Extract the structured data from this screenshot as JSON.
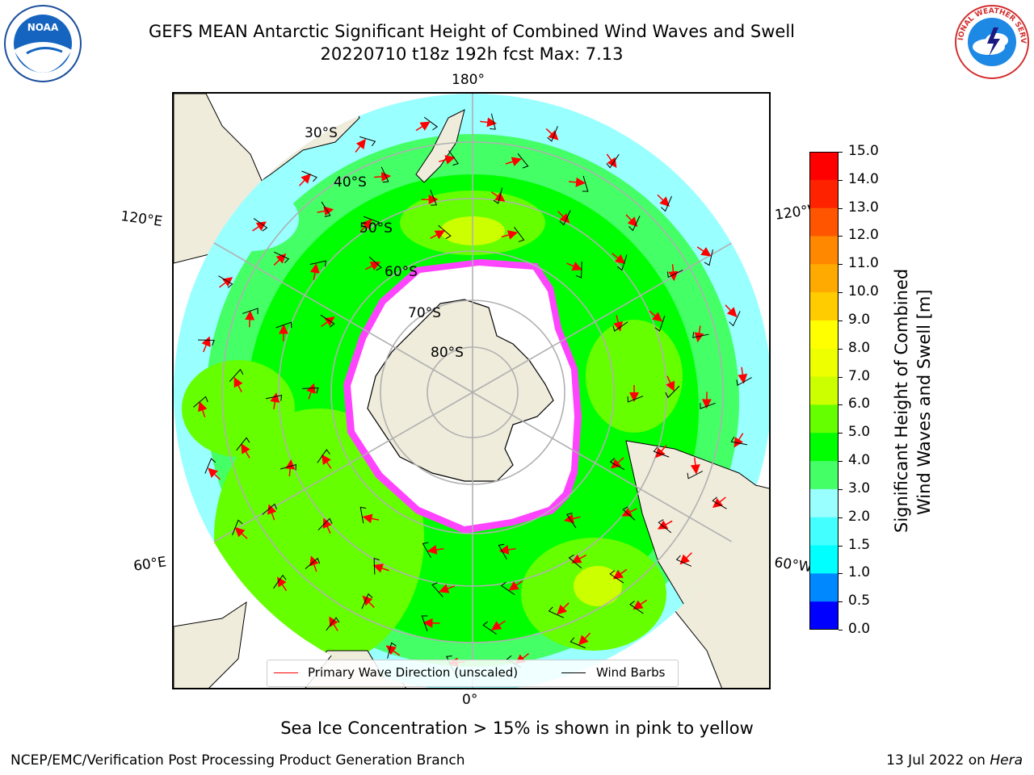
{
  "title": {
    "line1": "GEFS MEAN Antarctic Significant Height of Combined Wind Waves and Swell",
    "line2": "20220710 t18z 192h fcst   Max: 7.13"
  },
  "map": {
    "projection": "south-polar-stereographic",
    "longitude_labels": {
      "top": "180°",
      "bottom": "0°",
      "upper_left": "120°E",
      "upper_right": "120°W",
      "lower_left": "60°E",
      "lower_right": "60°W"
    },
    "latitude_labels": [
      "30°S",
      "40°S",
      "50°S",
      "60°S",
      "70°S",
      "80°S"
    ],
    "colors": {
      "land": "#efecdb",
      "ice_edge": "#ff44ff",
      "ice_interior": "#ffffff",
      "arrow": "#ff0000",
      "barb": "#000000"
    }
  },
  "legend": {
    "items": [
      {
        "label": "Primary Wave Direction (unscaled)",
        "color": "#ff0000"
      },
      {
        "label": "Wind Barbs",
        "color": "#000000"
      }
    ]
  },
  "colorbar": {
    "label_line1": "Significant Height of Combined",
    "label_line2": "Wind Waves and Swell [m]",
    "ticks": [
      "15.0",
      "14.0",
      "13.0",
      "12.0",
      "11.0",
      "10.0",
      "9.0",
      "8.0",
      "7.0",
      "6.0",
      "5.0",
      "4.0",
      "3.0",
      "2.0",
      "1.5",
      "1.0",
      "0.5",
      "0.0"
    ],
    "bins_top_to_bottom": [
      "#ff0000",
      "#ff2200",
      "#ff5500",
      "#ff8800",
      "#ffaa00",
      "#ffcc00",
      "#ffff00",
      "#eeff00",
      "#ccff00",
      "#66ff00",
      "#00ff00",
      "#44ff66",
      "#99ffff",
      "#44ffff",
      "#00ffff",
      "#0088ff",
      "#0000ff"
    ]
  },
  "caption": "Sea Ice Concentration > 15% is shown in pink to yellow",
  "footer": {
    "left": "NCEP/EMC/Verification Post Processing Product Generation Branch",
    "right_prefix": "13 Jul 2022 on ",
    "right_italic": "Hera"
  },
  "logos": {
    "left": {
      "name": "NOAA",
      "text": "NOAA"
    },
    "right": {
      "name": "National Weather Service",
      "text": "NATIONAL WEATHER SERVICE"
    }
  }
}
